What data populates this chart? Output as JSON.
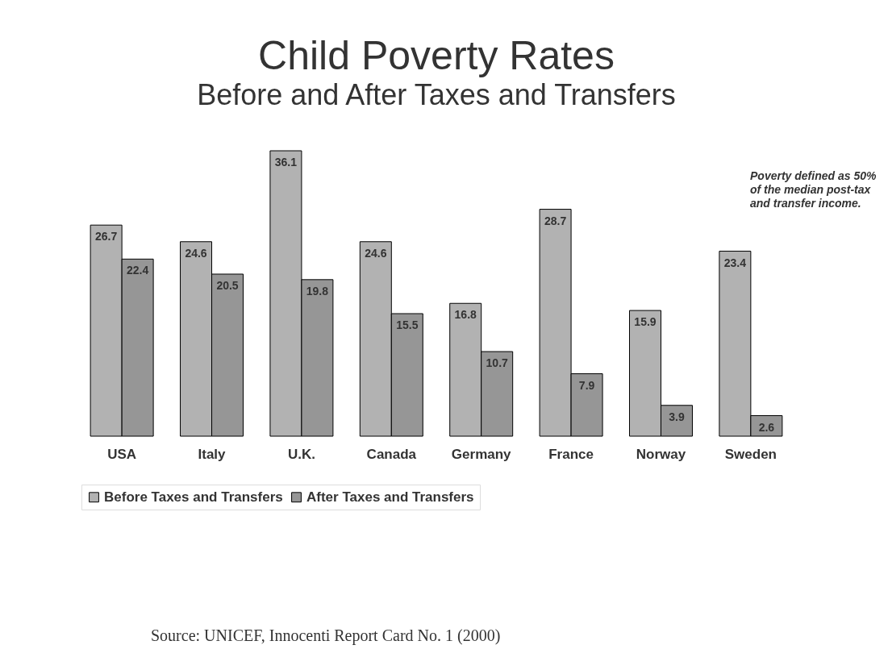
{
  "chart_data": {
    "type": "bar",
    "title": "Child Poverty Rates",
    "subtitle": "Before and After Taxes and Transfers",
    "categories": [
      "USA",
      "Italy",
      "U.K.",
      "Canada",
      "Germany",
      "France",
      "Norway",
      "Sweden"
    ],
    "series": [
      {
        "name": "Before Taxes and Transfers",
        "color": "#b2b2b2",
        "values": [
          26.7,
          24.6,
          36.1,
          24.6,
          16.8,
          28.7,
          15.9,
          23.4
        ]
      },
      {
        "name": "After Taxes and Transfers",
        "color": "#969696",
        "values": [
          22.4,
          20.5,
          19.8,
          15.5,
          10.7,
          7.9,
          3.9,
          2.6
        ]
      }
    ],
    "data_labels": true,
    "grid": false,
    "legend": "bottom",
    "annotations": [
      "Poverty defined as 50% of the median post-tax and transfer income.",
      "Source: UNICEF, Innocenti Report Card No. 1 (2000)"
    ]
  }
}
